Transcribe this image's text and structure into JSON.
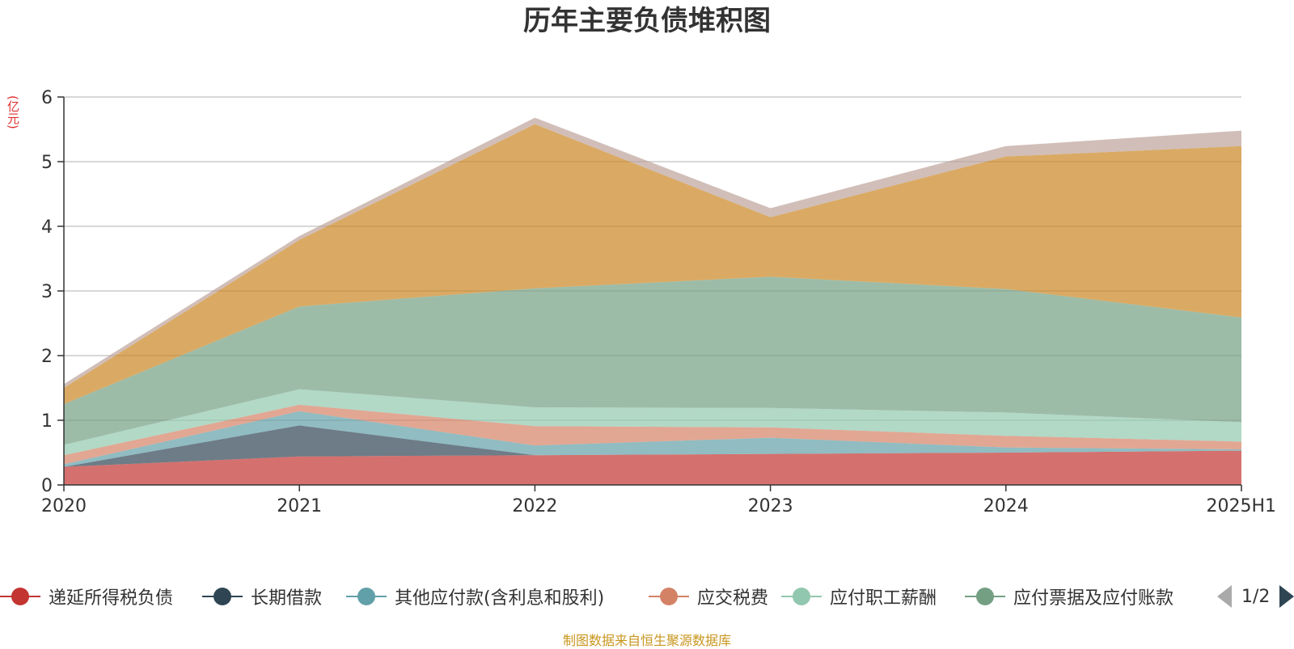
{
  "title": "历年主要负债堆积图",
  "unit_label": "(亿元)",
  "source_note": "制图数据来自恒生聚源数据库",
  "legend_page": "1/2",
  "chart_data": {
    "type": "area",
    "stacked": true,
    "categories": [
      "2020",
      "2021",
      "2022",
      "2023",
      "2024",
      "2025H1"
    ],
    "ylim": [
      0,
      6
    ],
    "yticks": [
      0,
      1,
      2,
      3,
      4,
      5,
      6
    ],
    "grid": true,
    "legend_position": "bottom",
    "series": [
      {
        "name": "递延所得税负债",
        "color": "#c23531",
        "values": [
          0.28,
          0.44,
          0.46,
          0.48,
          0.5,
          0.53
        ],
        "in_legend": true
      },
      {
        "name": "长期借款",
        "color": "#2f4554",
        "values": [
          0.0,
          0.48,
          0.0,
          0.0,
          0.0,
          0.0
        ],
        "in_legend": true
      },
      {
        "name": "其他应付款(含利息和股利)",
        "color": "#61a0a8",
        "values": [
          0.04,
          0.22,
          0.15,
          0.25,
          0.08,
          0.02
        ],
        "in_legend": true
      },
      {
        "name": "应交税费",
        "color": "#d48265",
        "values": [
          0.14,
          0.1,
          0.3,
          0.16,
          0.18,
          0.12
        ],
        "in_legend": true
      },
      {
        "name": "应付职工薪酬",
        "color": "#91c7ae",
        "values": [
          0.16,
          0.24,
          0.29,
          0.3,
          0.36,
          0.3
        ],
        "in_legend": true
      },
      {
        "name": "应付票据及应付账款",
        "color": "#749f83",
        "values": [
          0.63,
          1.28,
          1.84,
          2.03,
          1.91,
          1.62
        ],
        "in_legend": true
      },
      {
        "name": "",
        "color": "#ca8622",
        "values": [
          0.25,
          1.03,
          2.54,
          0.92,
          2.05,
          2.65
        ],
        "in_legend": false
      },
      {
        "name": "",
        "color": "#bda29a",
        "values": [
          0.06,
          0.06,
          0.1,
          0.14,
          0.16,
          0.24
        ],
        "in_legend": false
      }
    ]
  }
}
